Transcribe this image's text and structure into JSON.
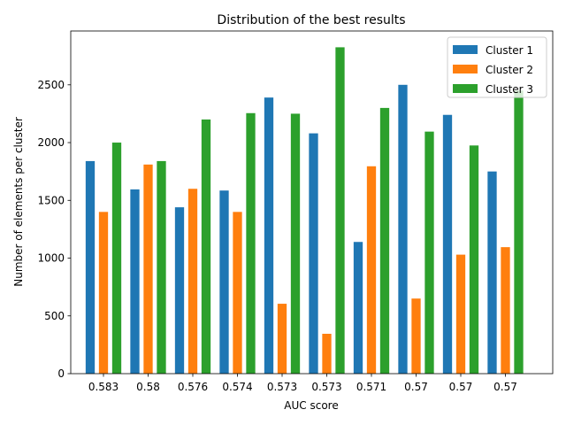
{
  "chart_data": {
    "type": "bar",
    "title": "Distribution of the best results",
    "xlabel": "AUC score",
    "ylabel": "Number of elements per cluster",
    "categories": [
      "0.583",
      "0.58",
      "0.576",
      "0.574",
      "0.573",
      "0.573",
      "0.571",
      "0.57",
      "0.57",
      "0.57"
    ],
    "series": [
      {
        "name": "Cluster 1",
        "color": "#1f77b4",
        "values": [
          1840,
          1595,
          1440,
          1585,
          2390,
          2080,
          1140,
          2500,
          2240,
          1750
        ]
      },
      {
        "name": "Cluster 2",
        "color": "#ff7f0e",
        "values": [
          1400,
          1810,
          1600,
          1400,
          605,
          345,
          1795,
          650,
          1030,
          1095
        ]
      },
      {
        "name": "Cluster 3",
        "color": "#2ca02c",
        "values": [
          2000,
          1840,
          2200,
          2255,
          2250,
          2825,
          2300,
          2095,
          1975,
          2450
        ]
      }
    ],
    "ylim": [
      0,
      2966
    ],
    "yticks": [
      0,
      500,
      1000,
      1500,
      2000,
      2500
    ],
    "grid": false,
    "legend_position": "top-right"
  }
}
